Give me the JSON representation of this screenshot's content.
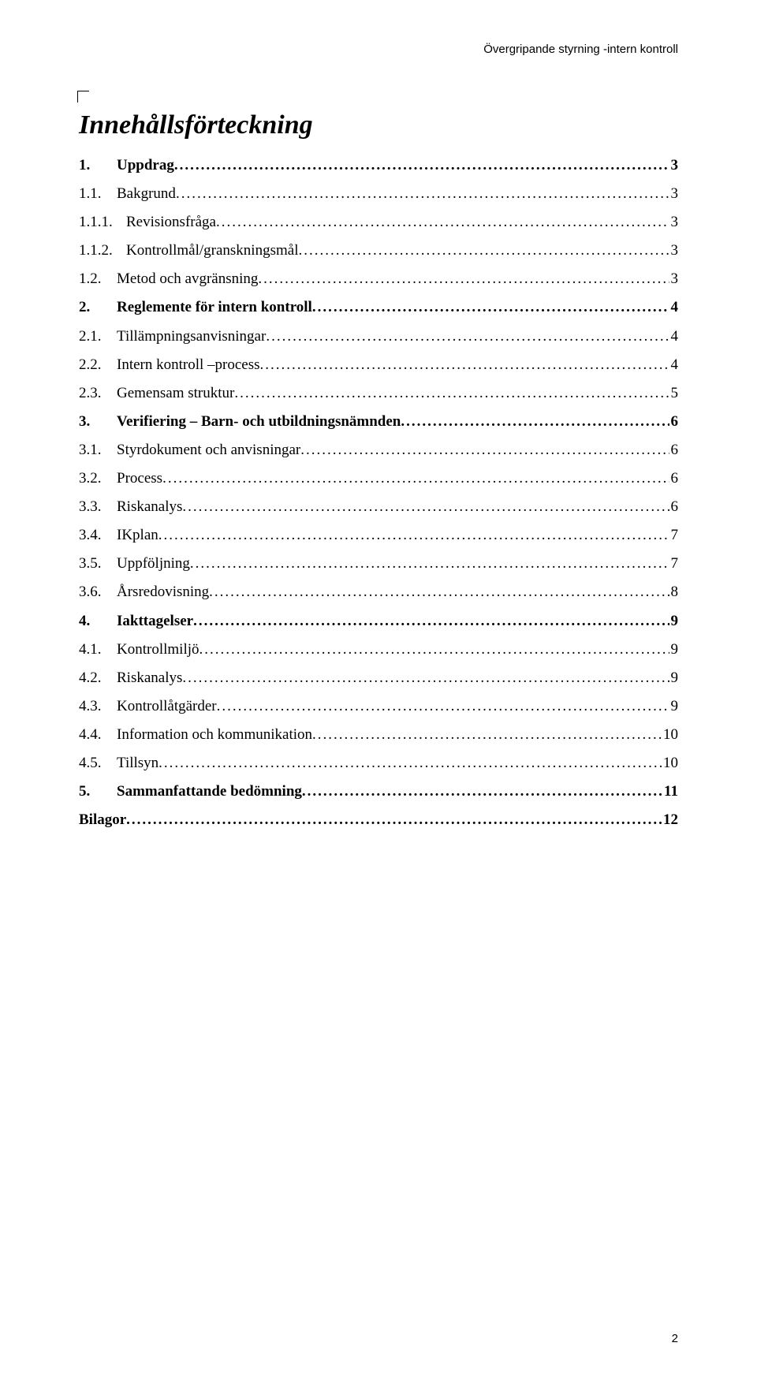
{
  "header": "Övergripande styrning -intern kontroll",
  "title": "Innehållsförteckning",
  "page_number": "2",
  "toc": [
    {
      "level": 1,
      "num": "1.",
      "label": "Uppdrag",
      "page": "3"
    },
    {
      "level": 2,
      "num": "1.1.",
      "label": "Bakgrund",
      "page": "3"
    },
    {
      "level": 3,
      "num": "1.1.1.",
      "label": "Revisionsfråga",
      "page": "3"
    },
    {
      "level": 3,
      "num": "1.1.2.",
      "label": "Kontrollmål/granskningsmål",
      "page": "3"
    },
    {
      "level": 2,
      "num": "1.2.",
      "label": "Metod och avgränsning",
      "page": "3"
    },
    {
      "level": 1,
      "num": "2.",
      "label": "Reglemente för intern kontroll",
      "page": "4"
    },
    {
      "level": 2,
      "num": "2.1.",
      "label": "Tillämpningsanvisningar",
      "page": "4"
    },
    {
      "level": 2,
      "num": "2.2.",
      "label": "Intern kontroll –process",
      "page": "4"
    },
    {
      "level": 2,
      "num": "2.3.",
      "label": "Gemensam struktur",
      "page": "5"
    },
    {
      "level": 1,
      "num": "3.",
      "label": "Verifiering – Barn- och utbildningsnämnden",
      "page": "6"
    },
    {
      "level": 2,
      "num": "3.1.",
      "label": "Styrdokument och anvisningar",
      "page": "6"
    },
    {
      "level": 2,
      "num": "3.2.",
      "label": "Process",
      "page": "6"
    },
    {
      "level": 2,
      "num": "3.3.",
      "label": "Riskanalys",
      "page": "6"
    },
    {
      "level": 2,
      "num": "3.4.",
      "label": "IKplan",
      "page": "7"
    },
    {
      "level": 2,
      "num": "3.5.",
      "label": "Uppföljning",
      "page": "7"
    },
    {
      "level": 2,
      "num": "3.6.",
      "label": "Årsredovisning",
      "page": "8"
    },
    {
      "level": 1,
      "num": "4.",
      "label": "Iakttagelser",
      "page": "9"
    },
    {
      "level": 2,
      "num": "4.1.",
      "label": "Kontrollmiljö",
      "page": "9"
    },
    {
      "level": 2,
      "num": "4.2.",
      "label": "Riskanalys",
      "page": "9"
    },
    {
      "level": 2,
      "num": "4.3.",
      "label": "Kontrollåtgärder",
      "page": "9"
    },
    {
      "level": 2,
      "num": "4.4.",
      "label": "Information och kommunikation",
      "page": "10"
    },
    {
      "level": 2,
      "num": "4.5.",
      "label": "Tillsyn",
      "page": "10"
    },
    {
      "level": 1,
      "num": "5.",
      "label": "Sammanfattande bedömning",
      "page": "11"
    },
    {
      "level": 1,
      "num": "",
      "label": "Bilagor",
      "page": "12"
    }
  ]
}
